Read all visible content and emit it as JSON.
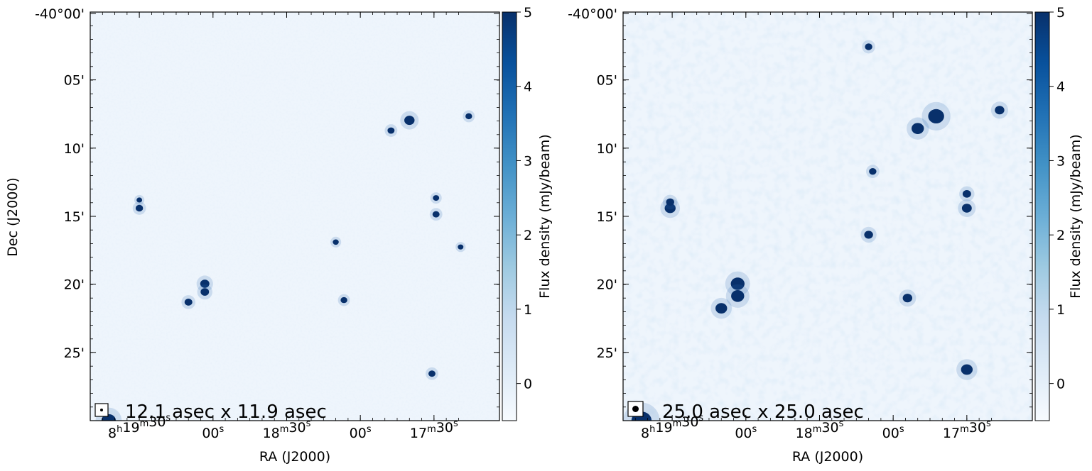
{
  "figure": {
    "shared_ylabel": "Dec (J2000)",
    "colors": {
      "background": "#eef5fc",
      "noise_light": "#dde9f7",
      "source_dark": "#08306b",
      "source_mid": "#2b6cb0",
      "axis": "#000000"
    },
    "colorbar": {
      "label": "Flux density (mJy/beam)",
      "vmin": -0.5,
      "vmax": 5,
      "ticks": [
        "5",
        "4",
        "3",
        "2",
        "1",
        "0"
      ],
      "tick_values": [
        5,
        4,
        3,
        2,
        1,
        0
      ],
      "gradient": [
        "#f7fbff",
        "#deebf7",
        "#c6dbef",
        "#9ecae1",
        "#6baed6",
        "#4292c6",
        "#2171b5",
        "#08519c",
        "#08306b"
      ]
    },
    "x_axis": {
      "label": "RA (J2000)",
      "ticks": [
        {
          "main": "8",
          "sup1": "h",
          "mid": "19",
          "sup2": "m",
          "sec": "30",
          "sup3": "s"
        },
        {
          "main": "",
          "sup1": "",
          "mid": "",
          "sup2": "",
          "sec": "00",
          "sup3": "s"
        },
        {
          "main": "",
          "sup1": "",
          "mid": "18",
          "sup2": "m",
          "sec": "30",
          "sup3": "s"
        },
        {
          "main": "",
          "sup1": "",
          "mid": "",
          "sup2": "",
          "sec": "00",
          "sup3": "s"
        },
        {
          "main": "",
          "sup1": "",
          "mid": "17",
          "sup2": "m",
          "sec": "30",
          "sup3": "s"
        }
      ]
    },
    "y_axis": {
      "ticks": [
        "-40°00'",
        "05'",
        "10'",
        "15'",
        "20'",
        "25'"
      ]
    },
    "panels": [
      {
        "id": "left",
        "beam_label": "12.1 asec x 11.9 asec",
        "sources": [
          {
            "x": 0.78,
            "y": 0.265,
            "s": 1.0
          },
          {
            "x": 0.735,
            "y": 0.29,
            "s": 0.55
          },
          {
            "x": 0.925,
            "y": 0.255,
            "s": 0.5
          },
          {
            "x": 0.12,
            "y": 0.48,
            "s": 0.6
          },
          {
            "x": 0.12,
            "y": 0.46,
            "s": 0.35
          },
          {
            "x": 0.845,
            "y": 0.455,
            "s": 0.45
          },
          {
            "x": 0.845,
            "y": 0.495,
            "s": 0.55
          },
          {
            "x": 0.28,
            "y": 0.665,
            "s": 0.85
          },
          {
            "x": 0.28,
            "y": 0.685,
            "s": 0.75
          },
          {
            "x": 0.24,
            "y": 0.71,
            "s": 0.65
          },
          {
            "x": 0.62,
            "y": 0.705,
            "s": 0.5
          },
          {
            "x": 0.6,
            "y": 0.563,
            "s": 0.4
          },
          {
            "x": 0.835,
            "y": 0.885,
            "s": 0.55
          },
          {
            "x": 0.905,
            "y": 0.575,
            "s": 0.35
          },
          {
            "x": 0.045,
            "y": 1.0,
            "s": 1.6
          }
        ]
      },
      {
        "id": "right",
        "beam_label": "25.0 asec x 25.0 asec",
        "sources": [
          {
            "x": 0.765,
            "y": 0.255,
            "s": 1.8
          },
          {
            "x": 0.72,
            "y": 0.285,
            "s": 1.3
          },
          {
            "x": 0.92,
            "y": 0.24,
            "s": 0.9
          },
          {
            "x": 0.115,
            "y": 0.48,
            "s": 1.1
          },
          {
            "x": 0.115,
            "y": 0.465,
            "s": 0.7
          },
          {
            "x": 0.84,
            "y": 0.445,
            "s": 0.75
          },
          {
            "x": 0.84,
            "y": 0.48,
            "s": 0.95
          },
          {
            "x": 0.6,
            "y": 0.545,
            "s": 0.8
          },
          {
            "x": 0.28,
            "y": 0.665,
            "s": 1.5
          },
          {
            "x": 0.28,
            "y": 0.695,
            "s": 1.4
          },
          {
            "x": 0.24,
            "y": 0.725,
            "s": 1.2
          },
          {
            "x": 0.695,
            "y": 0.7,
            "s": 0.9
          },
          {
            "x": 0.84,
            "y": 0.875,
            "s": 1.2
          },
          {
            "x": 0.6,
            "y": 0.085,
            "s": 0.6
          },
          {
            "x": 0.61,
            "y": 0.39,
            "s": 0.6
          },
          {
            "x": 0.045,
            "y": 1.0,
            "s": 2.4
          }
        ]
      }
    ]
  }
}
